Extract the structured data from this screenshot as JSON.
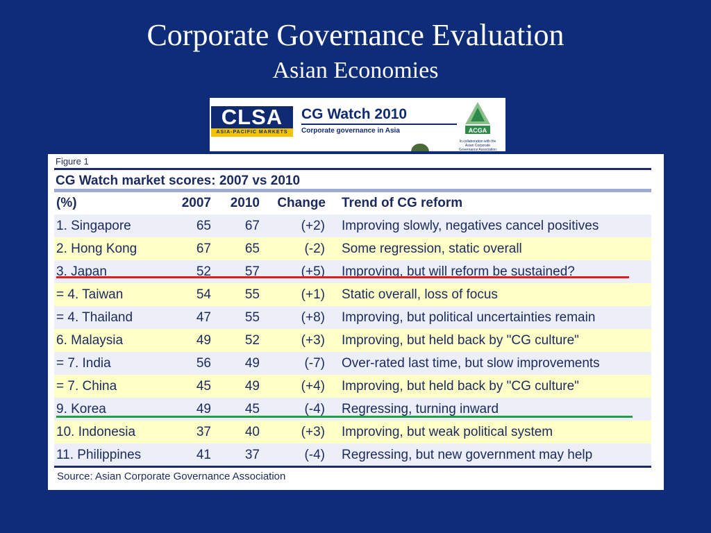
{
  "slide": {
    "title": "Corporate Governance Evaluation",
    "subtitle": "Asian Economies"
  },
  "banner": {
    "clsa_logo_text": "CLSA",
    "clsa_tagline": "ASIA-PACIFIC MARKETS",
    "report_title": "CG Watch 2010",
    "report_subtitle": "Corporate governance in Asia",
    "acga_logo_text": "ACGA",
    "acga_note": "In collaboration with the Asian Corporate Governance Association"
  },
  "figure": {
    "label": "Figure 1",
    "title": "CG Watch market scores: 2007 vs 2010",
    "columns": {
      "market": "(%)",
      "y2007": "2007",
      "y2010": "2010",
      "change": "Change",
      "trend": "Trend of CG reform"
    },
    "rows": [
      {
        "market": "1. Singapore",
        "y2007": "65",
        "y2010": "67",
        "change": "(+2)",
        "trend": "Improving slowly, negatives cancel positives"
      },
      {
        "market": "2. Hong Kong",
        "y2007": "67",
        "y2010": "65",
        "change": "(-2)",
        "trend": "Some regression, static overall"
      },
      {
        "market": "3. Japan",
        "y2007": "52",
        "y2010": "57",
        "change": "(+5)",
        "trend": "Improving, but will reform be sustained?"
      },
      {
        "market": "= 4. Taiwan",
        "y2007": "54",
        "y2010": "55",
        "change": "(+1)",
        "trend": "Static overall, loss of focus"
      },
      {
        "market": "= 4. Thailand",
        "y2007": "47",
        "y2010": "55",
        "change": "(+8)",
        "trend": "Improving, but political uncertainties remain"
      },
      {
        "market": "6. Malaysia",
        "y2007": "49",
        "y2010": "52",
        "change": "(+3)",
        "trend": "Improving, but held back by \"CG culture\""
      },
      {
        "market": "= 7. India",
        "y2007": "56",
        "y2010": "49",
        "change": "(-7)",
        "trend": "Over-rated last time, but slow improvements"
      },
      {
        "market": "= 7. China",
        "y2007": "45",
        "y2010": "49",
        "change": "(+4)",
        "trend": "Improving, but held back by \"CG culture\""
      },
      {
        "market": "9. Korea",
        "y2007": "49",
        "y2010": "45",
        "change": "(-4)",
        "trend": "Regressing, turning inward"
      },
      {
        "market": "10. Indonesia",
        "y2007": "37",
        "y2010": "40",
        "change": "(+3)",
        "trend": "Improving, but weak political system"
      },
      {
        "market": "11. Philippines",
        "y2007": "41",
        "y2010": "37",
        "change": "(-4)",
        "trend": "Regressing, but new government may help"
      }
    ],
    "source": "Source: Asian Corporate Governance Association"
  },
  "colors": {
    "background": "#0e2c78",
    "row_odd": "#eceef8",
    "row_even": "#ffffc8",
    "red_underline": "#e02020",
    "green_underline": "#20a040"
  }
}
